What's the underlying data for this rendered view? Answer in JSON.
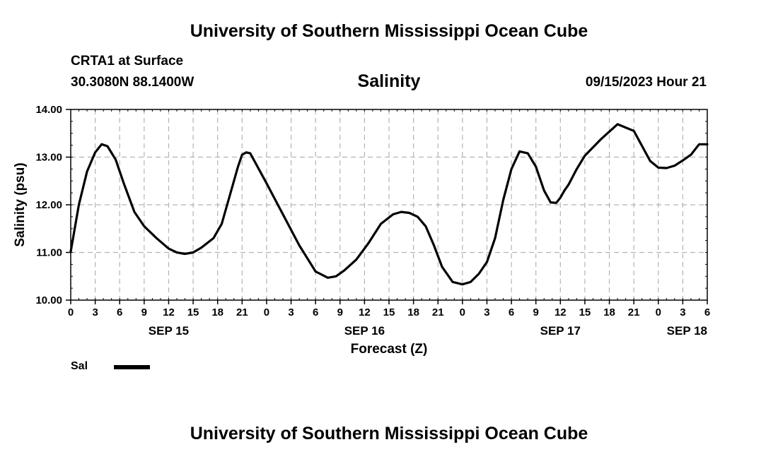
{
  "header": {
    "title": "University of Southern Mississippi Ocean Cube",
    "station": "CRTA1 at Surface",
    "coords": "30.3080N  88.1400W",
    "parameter": "Salinity",
    "datetime": "09/15/2023 Hour 21"
  },
  "footer": {
    "title": "University of Southern Mississippi Ocean Cube"
  },
  "legend": {
    "label": "Sal",
    "color": "#000000"
  },
  "chart_data": {
    "type": "line",
    "title": "Salinity",
    "ylabel": "Salinity (psu)",
    "xlabel": "Forecast (Z)",
    "ylim": [
      10,
      14
    ],
    "yticks": [
      "10.00",
      "11.00",
      "12.00",
      "13.00",
      "14.00"
    ],
    "xlim_hours": [
      0,
      78
    ],
    "xtick_labels": [
      "0",
      "3",
      "6",
      "9",
      "12",
      "15",
      "18",
      "21",
      "0",
      "3",
      "6",
      "9",
      "12",
      "15",
      "18",
      "21",
      "0",
      "3",
      "6",
      "9",
      "12",
      "15",
      "18",
      "21",
      "0",
      "3",
      "6"
    ],
    "date_labels": [
      {
        "label": "SEP 15",
        "hour": 12
      },
      {
        "label": "SEP 16",
        "hour": 36
      },
      {
        "label": "SEP 17",
        "hour": 60
      },
      {
        "label": "SEP 18",
        "hour": 78
      }
    ],
    "grid": true,
    "series": [
      {
        "name": "Sal",
        "color": "#000000",
        "x": [
          0,
          1,
          2,
          3,
          3.8,
          4.5,
          5.5,
          6.5,
          7.8,
          9,
          10.5,
          12,
          13,
          14,
          15,
          16,
          17.5,
          18.5,
          19.5,
          20.5,
          21,
          21.5,
          22,
          24,
          26,
          28,
          30,
          31.5,
          32.5,
          33.5,
          35,
          36.5,
          38,
          39.5,
          40.5,
          41.5,
          42.5,
          43.5,
          44.5,
          45.5,
          46.8,
          48,
          49,
          50,
          51,
          52,
          53,
          54,
          55,
          56,
          57,
          58,
          58.8,
          59.5,
          60,
          60.5,
          61,
          62,
          63,
          65,
          67,
          69,
          71,
          72,
          73,
          74,
          75,
          76,
          77,
          78
        ],
        "y": [
          11.02,
          12.0,
          12.7,
          13.1,
          13.27,
          13.23,
          12.95,
          12.45,
          11.85,
          11.55,
          11.3,
          11.08,
          11.0,
          10.97,
          11.0,
          11.1,
          11.3,
          11.6,
          12.2,
          12.8,
          13.05,
          13.1,
          13.08,
          12.45,
          11.8,
          11.15,
          10.6,
          10.47,
          10.5,
          10.62,
          10.85,
          11.2,
          11.6,
          11.8,
          11.85,
          11.83,
          11.75,
          11.55,
          11.15,
          10.7,
          10.38,
          10.33,
          10.38,
          10.55,
          10.8,
          11.3,
          12.1,
          12.75,
          13.12,
          13.08,
          12.8,
          12.3,
          12.05,
          12.04,
          12.15,
          12.3,
          12.42,
          12.75,
          13.03,
          13.38,
          13.69,
          13.55,
          12.92,
          12.78,
          12.77,
          12.82,
          12.93,
          13.05,
          13.27,
          13.27
        ]
      }
    ]
  }
}
